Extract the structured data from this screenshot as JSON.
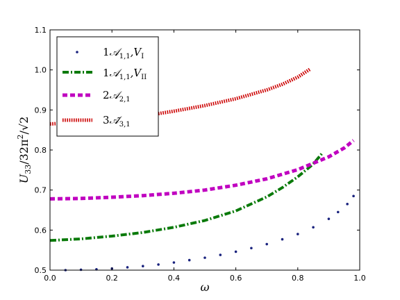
{
  "chart_data": {
    "type": "line",
    "xlabel": "ω",
    "ylabel": "U₃₃/32π² /√2",
    "xlim": [
      0.0,
      1.0
    ],
    "ylim": [
      0.5,
      1.1
    ],
    "x_ticks": [
      "0.0",
      "0.2",
      "0.4",
      "0.6",
      "0.8",
      "1.0"
    ],
    "y_ticks": [
      "0.5",
      "0.6",
      "0.7",
      "0.8",
      "0.9",
      "1.0",
      "1.1"
    ],
    "grid": false,
    "legend_position": "top-left",
    "series": [
      {
        "name": "1𝒜1,1,VI",
        "color": "#1a237e",
        "style": "dotted-markers",
        "x": [
          0.05,
          0.1,
          0.15,
          0.2,
          0.25,
          0.3,
          0.35,
          0.4,
          0.45,
          0.5,
          0.55,
          0.6,
          0.65,
          0.7,
          0.75,
          0.8,
          0.85,
          0.9,
          0.93,
          0.96,
          0.98
        ],
        "y": [
          0.5,
          0.501,
          0.502,
          0.504,
          0.507,
          0.51,
          0.514,
          0.519,
          0.525,
          0.531,
          0.538,
          0.546,
          0.555,
          0.565,
          0.577,
          0.59,
          0.607,
          0.628,
          0.645,
          0.665,
          0.685
        ]
      },
      {
        "name": "1𝒜1,1,VII",
        "color": "#0a7a0a",
        "style": "dash-dot",
        "x": [
          0.0,
          0.1,
          0.2,
          0.3,
          0.4,
          0.5,
          0.6,
          0.7,
          0.75,
          0.8,
          0.85,
          0.88
        ],
        "y": [
          0.574,
          0.578,
          0.585,
          0.594,
          0.607,
          0.624,
          0.648,
          0.683,
          0.706,
          0.733,
          0.765,
          0.793
        ]
      },
      {
        "name": "2𝒜2,1",
        "color": "#c000c0",
        "style": "dashed",
        "x": [
          0.0,
          0.1,
          0.2,
          0.3,
          0.4,
          0.5,
          0.6,
          0.7,
          0.8,
          0.9,
          0.95,
          0.98
        ],
        "y": [
          0.678,
          0.679,
          0.682,
          0.686,
          0.692,
          0.7,
          0.712,
          0.728,
          0.751,
          0.783,
          0.805,
          0.824
        ]
      },
      {
        "name": "3𝒜̃3,1",
        "color": "#cc0000",
        "style": "fine-dotted",
        "x": [
          0.0,
          0.1,
          0.2,
          0.3,
          0.4,
          0.5,
          0.6,
          0.7,
          0.75,
          0.8,
          0.84
        ],
        "y": [
          0.865,
          0.869,
          0.876,
          0.885,
          0.897,
          0.911,
          0.928,
          0.95,
          0.964,
          0.982,
          1.002
        ]
      }
    ]
  },
  "legend": {
    "entries": [
      {
        "prefix": "1",
        "main": "𝒜",
        "sub": "1,1",
        "suffix": ",V",
        "suffix_sub": "I"
      },
      {
        "prefix": "1",
        "main": "𝒜",
        "sub": "1,1",
        "suffix": ",V",
        "suffix_sub": "II"
      },
      {
        "prefix": "2",
        "main": "𝒜",
        "sub": "2,1",
        "suffix": "",
        "suffix_sub": ""
      },
      {
        "prefix": "3",
        "main": "𝒜̃",
        "sub": "3,1",
        "suffix": "",
        "suffix_sub": ""
      }
    ]
  },
  "labels": {
    "x": "ω",
    "y_main": "U",
    "y_sub": "33",
    "y_mid": "/32π",
    "y_sup": "2",
    "y_tail": "/√2"
  }
}
